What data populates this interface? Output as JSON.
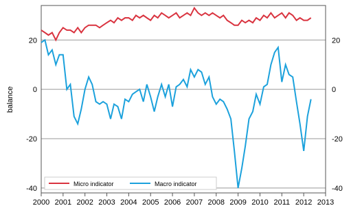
{
  "chart_data": {
    "type": "line",
    "y_label": "balance",
    "x": [
      2000.0,
      2000.17,
      2000.33,
      2000.5,
      2000.67,
      2000.83,
      2001.0,
      2001.17,
      2001.33,
      2001.5,
      2001.67,
      2001.83,
      2002.0,
      2002.17,
      2002.33,
      2002.5,
      2002.67,
      2002.83,
      2003.0,
      2003.17,
      2003.33,
      2003.5,
      2003.67,
      2003.83,
      2004.0,
      2004.17,
      2004.33,
      2004.5,
      2004.67,
      2004.83,
      2005.0,
      2005.17,
      2005.33,
      2005.5,
      2005.67,
      2005.83,
      2006.0,
      2006.17,
      2006.33,
      2006.5,
      2006.67,
      2006.83,
      2007.0,
      2007.17,
      2007.33,
      2007.5,
      2007.67,
      2007.83,
      2008.0,
      2008.17,
      2008.33,
      2008.5,
      2008.67,
      2008.83,
      2009.0,
      2009.17,
      2009.33,
      2009.5,
      2009.67,
      2009.83,
      2010.0,
      2010.17,
      2010.33,
      2010.5,
      2010.67,
      2010.83,
      2011.0,
      2011.17,
      2011.33,
      2011.5,
      2011.67,
      2011.83,
      2012.0,
      2012.17,
      2012.33
    ],
    "series": [
      {
        "name": "Micro indicator",
        "color": "#d9333f",
        "values": [
          24,
          23,
          22,
          23,
          20,
          23,
          25,
          24,
          24,
          23,
          25,
          23,
          25,
          26,
          26,
          26,
          25,
          26,
          27,
          28,
          27,
          29,
          28,
          29,
          29,
          28,
          30,
          29,
          30,
          29,
          28,
          30,
          29,
          31,
          30,
          29,
          30,
          31,
          29,
          30,
          31,
          30,
          33,
          31,
          30,
          31,
          30,
          31,
          30,
          29,
          30,
          28,
          27,
          26,
          26,
          28,
          27,
          28,
          27,
          29,
          28,
          30,
          29,
          31,
          29,
          30,
          31,
          29,
          31,
          30,
          28,
          29,
          28,
          28,
          29
        ]
      },
      {
        "name": "Macro indicator",
        "color": "#1ba1dc",
        "values": [
          19,
          20,
          14,
          16,
          10,
          14,
          14,
          0,
          2,
          -11,
          -14,
          -8,
          0,
          5,
          2,
          -5,
          -6,
          -5,
          -6,
          -12,
          -6,
          -7,
          -12,
          -4,
          -5,
          -2,
          -1,
          0,
          -5,
          2,
          -3,
          -9,
          -3,
          2,
          -3,
          2,
          -7,
          1,
          2,
          4,
          1,
          8,
          5,
          8,
          7,
          2,
          5,
          -3,
          -6,
          -4,
          -5,
          -8,
          -12,
          -25,
          -40,
          -32,
          -23,
          -12,
          -9,
          -2,
          -6,
          1,
          2,
          10,
          15,
          17,
          3,
          10,
          6,
          5,
          -5,
          -14,
          -25,
          -11,
          -4
        ]
      }
    ],
    "xlim": [
      2000,
      2013
    ],
    "xticks": [
      2000,
      2001,
      2002,
      2003,
      2004,
      2005,
      2006,
      2007,
      2008,
      2009,
      2010,
      2011,
      2012,
      2013
    ],
    "ylim": [
      -42,
      34
    ],
    "yticks": [
      -40,
      -20,
      0,
      20
    ],
    "grid": true,
    "legend": "lower-left"
  }
}
